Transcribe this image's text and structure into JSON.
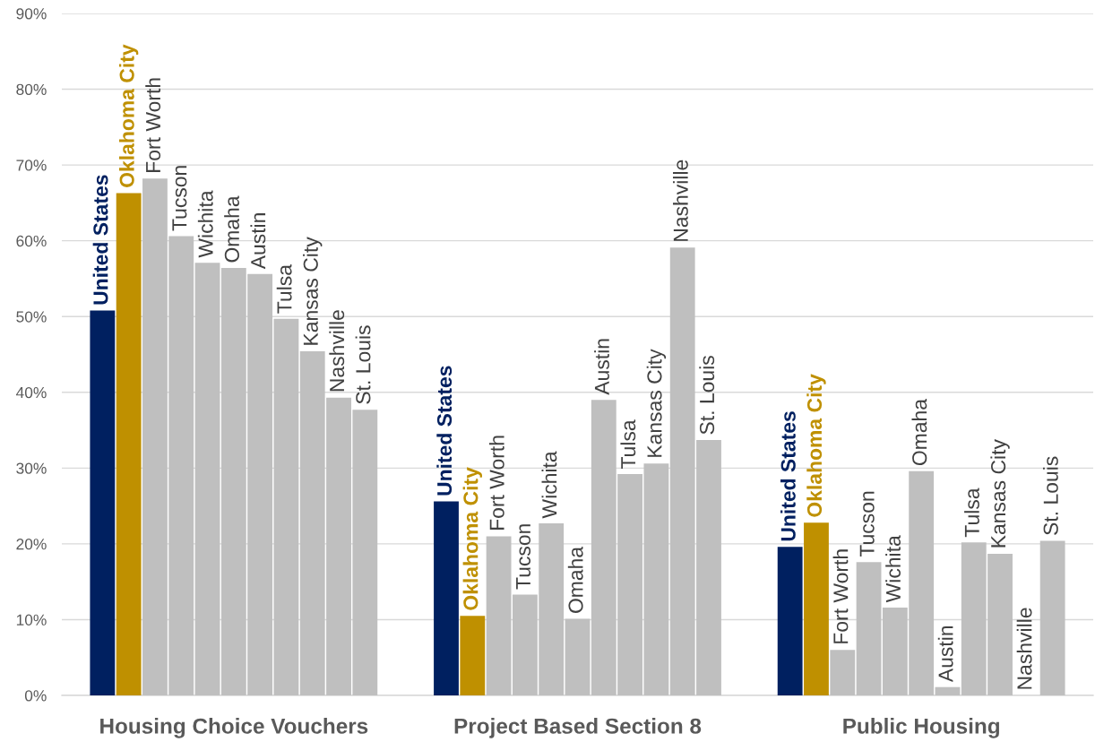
{
  "chart_data": {
    "type": "bar",
    "categories": [
      "Housing Choice Vouchers",
      "Project Based Section 8",
      "Public Housing"
    ],
    "series": [
      {
        "name": "United States",
        "color": "#002060",
        "values": [
          50.8,
          25.6,
          19.6
        ]
      },
      {
        "name": "Oklahoma City",
        "color": "#bf9000",
        "values": [
          66.3,
          10.5,
          22.8
        ]
      },
      {
        "name": "Fort Worth",
        "color": "#bfbfbf",
        "values": [
          68.2,
          21.0,
          6.0
        ]
      },
      {
        "name": "Tucson",
        "color": "#bfbfbf",
        "values": [
          60.6,
          13.3,
          17.6
        ]
      },
      {
        "name": "Wichita",
        "color": "#bfbfbf",
        "values": [
          57.1,
          22.7,
          11.6
        ]
      },
      {
        "name": "Omaha",
        "color": "#bfbfbf",
        "values": [
          56.4,
          10.1,
          29.6
        ]
      },
      {
        "name": "Austin",
        "color": "#bfbfbf",
        "values": [
          55.6,
          39.0,
          1.1
        ]
      },
      {
        "name": "Tulsa",
        "color": "#bfbfbf",
        "values": [
          49.7,
          29.2,
          20.2
        ]
      },
      {
        "name": "Kansas City",
        "color": "#bfbfbf",
        "values": [
          45.4,
          30.6,
          18.7
        ]
      },
      {
        "name": "Nashville",
        "color": "#bfbfbf",
        "values": [
          39.3,
          59.1,
          0
        ]
      },
      {
        "name": "St. Louis",
        "color": "#bfbfbf",
        "values": [
          37.7,
          33.7,
          20.4
        ]
      }
    ],
    "ylim": [
      0,
      90
    ],
    "yticks": [
      {
        "value": 0,
        "label": "0%"
      },
      {
        "value": 10,
        "label": "10%"
      },
      {
        "value": 20,
        "label": "20%"
      },
      {
        "value": 30,
        "label": "30%"
      },
      {
        "value": 40,
        "label": "40%"
      },
      {
        "value": 50,
        "label": "50%"
      },
      {
        "value": 60,
        "label": "60%"
      },
      {
        "value": 70,
        "label": "70%"
      },
      {
        "value": 80,
        "label": "80%"
      },
      {
        "value": 90,
        "label": "90%"
      }
    ],
    "grid": "y",
    "legend": false
  }
}
